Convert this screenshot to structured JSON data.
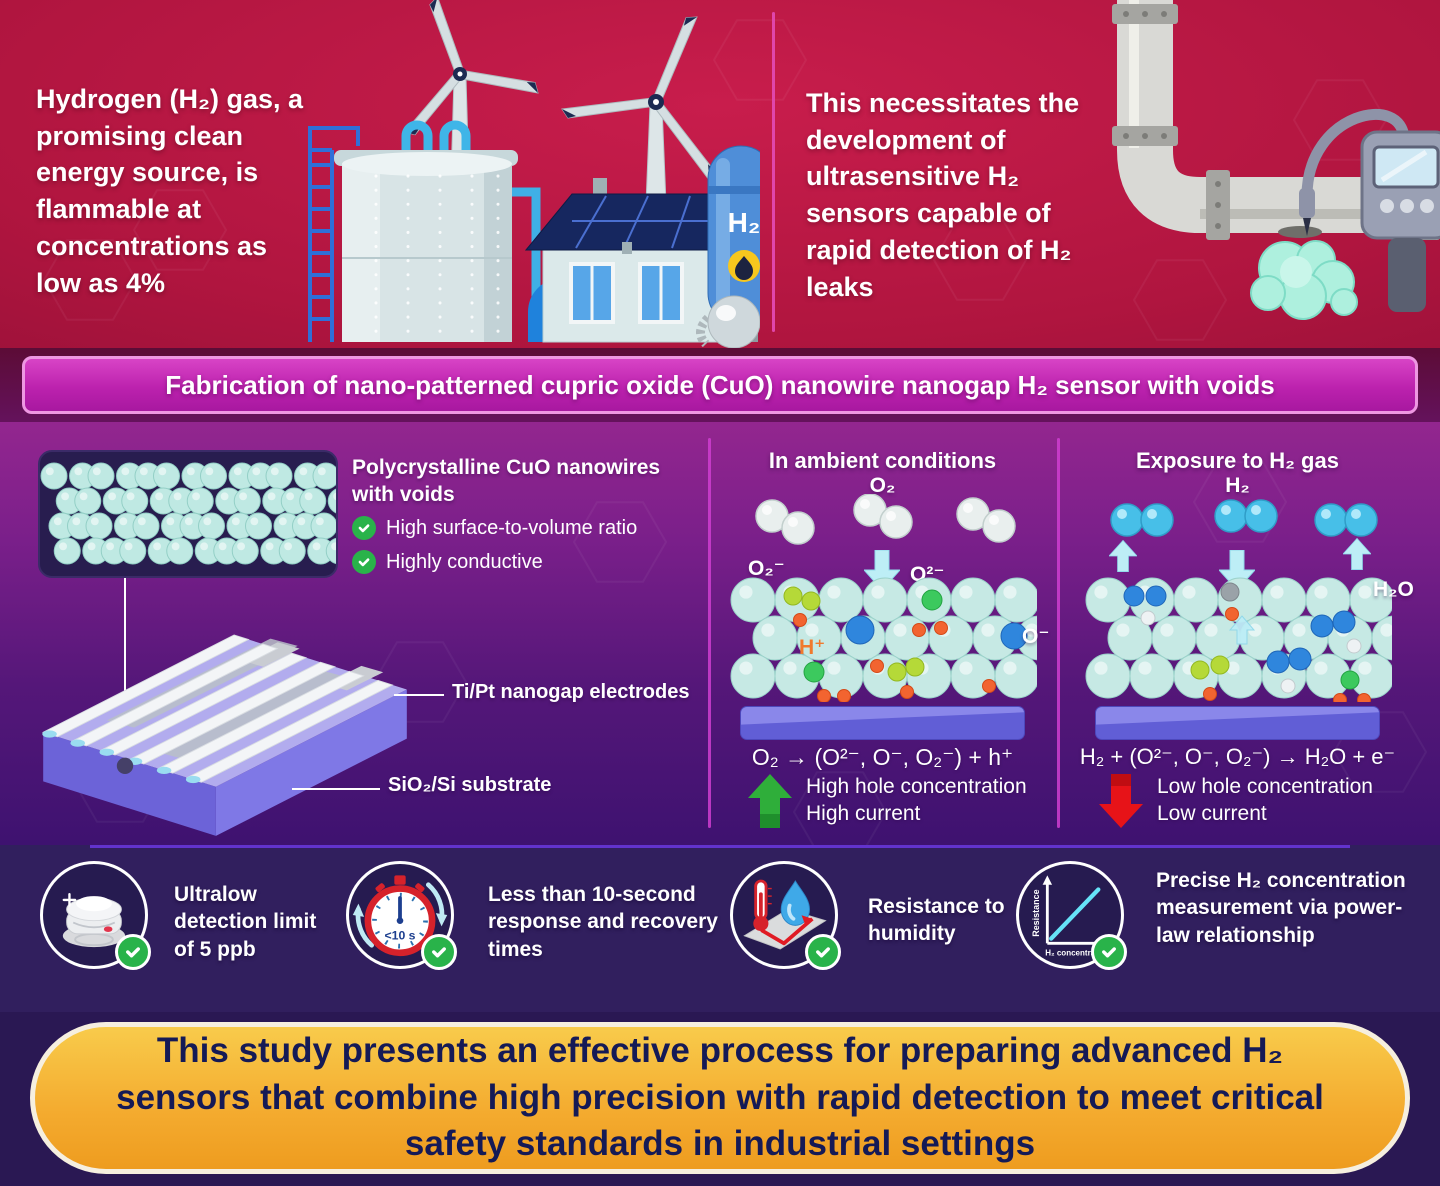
{
  "top": {
    "left_text": "Hydrogen (H₂) gas, a promising clean energy source, is flammable at concentrations as low as 4%",
    "right_text": "This necessitates the development of ultrasensitive H₂ sensors capable of rapid detection of H₂ leaks",
    "vessel_label": "H₂"
  },
  "banner": {
    "title": "Fabrication of nano-patterned cupric oxide (CuO) nanowire nanogap H₂ sensor with voids"
  },
  "fabrication": {
    "heading": "Polycrystalline CuO nanowires with voids",
    "features": [
      {
        "icon": "check-icon",
        "label": "High surface-to-volume ratio"
      },
      {
        "icon": "check-icon",
        "label": "Highly conductive"
      }
    ],
    "electrodes_label": "Ti/Pt nanogap electrodes",
    "substrate_label": "SiO₂/Si substrate"
  },
  "ambient": {
    "title": "In ambient conditions",
    "labels": {
      "o2": "O₂",
      "superoxide": "O₂⁻",
      "oxide": "O²⁻",
      "proton": "H⁺",
      "o_minus": "O⁻"
    },
    "equation": "O₂ → (O²⁻, O⁻, O₂⁻) + h⁺",
    "effect1": "High hole concentration",
    "effect2": "High current"
  },
  "exposure": {
    "title": "Exposure to H₂ gas",
    "labels": {
      "h2": "H₂",
      "h2o": "H₂O"
    },
    "equation": "H₂ + (O²⁻, O⁻, O₂⁻) → H₂O + e⁻",
    "effect1": "Low hole concentration",
    "effect2": "Low current"
  },
  "badges": [
    {
      "icon": "smoke-detector-icon",
      "text": "Ultralow detection limit of 5 ppb"
    },
    {
      "icon": "stopwatch-icon",
      "icon_text": "<10 s",
      "text": "Less than 10-second response and recovery times"
    },
    {
      "icon": "humidity-resistance-icon",
      "text": "Resistance to humidity"
    },
    {
      "icon": "power-law-chart-icon",
      "text": "Precise H₂ concentration measurement via power-law relationship",
      "chart": {
        "ylabel": "Resistance",
        "xlabel": "H₂ concentration"
      }
    }
  ],
  "conclusion": {
    "text": "This study presents an effective process for preparing advanced H₂ sensors that combine high precision with rapid detection to meet critical safety standards in industrial settings"
  },
  "colors": {
    "top_band": "#b0153f",
    "banner_magenta": "#bc22ae",
    "main_purple": "#551779",
    "badge_indigo": "#311f5e",
    "accent_orange_banner": "#f4ab2f",
    "success_green": "#29b34a",
    "alert_red": "#e71318",
    "sphere_teal": "#c6e9e4",
    "substrate_violet": "#615ed6"
  }
}
